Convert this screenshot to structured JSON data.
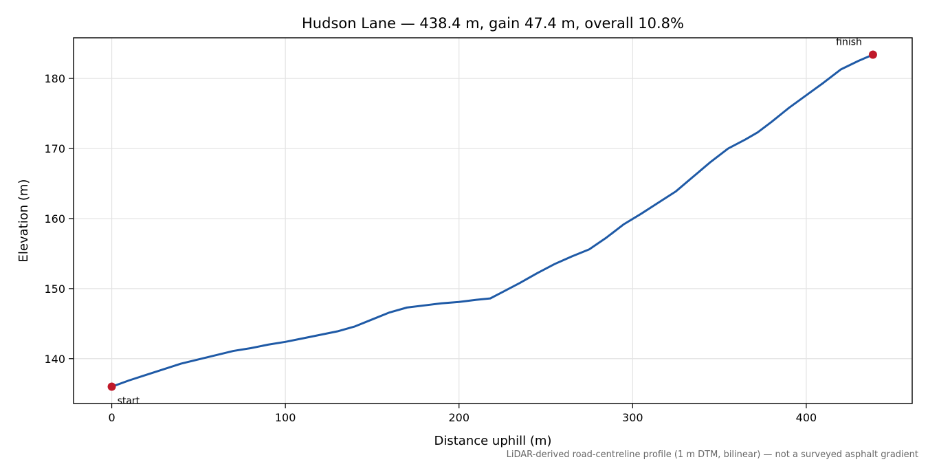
{
  "chart_data": {
    "type": "line",
    "title": "Hudson Lane — 438.4 m, gain 47.4 m, overall 10.8%",
    "xlabel": "Distance uphill (m)",
    "ylabel": "Elevation (m)",
    "xlim": [
      -22,
      461
    ],
    "ylim": [
      133.6,
      185.8
    ],
    "x_ticks": [
      0,
      100,
      200,
      300,
      400
    ],
    "y_ticks": [
      140,
      150,
      160,
      170,
      180
    ],
    "grid": true,
    "line_color": "#1f5aa6",
    "marker_color": "#c0192a",
    "series": [
      {
        "x": [
          0,
          10,
          20,
          30,
          40,
          50,
          60,
          70,
          80,
          90,
          100,
          110,
          120,
          130,
          140,
          150,
          160,
          170,
          180,
          190,
          200,
          210,
          218,
          225,
          235,
          245,
          255,
          265,
          275,
          285,
          295,
          305,
          315,
          325,
          335,
          345,
          355,
          365,
          372,
          380,
          390,
          400,
          410,
          420,
          430,
          438.4
        ],
        "y": [
          136.0,
          136.9,
          137.7,
          138.5,
          139.3,
          139.9,
          140.5,
          141.1,
          141.5,
          142.0,
          142.4,
          142.9,
          143.4,
          143.9,
          144.6,
          145.6,
          146.6,
          147.3,
          147.6,
          147.9,
          148.1,
          148.4,
          148.6,
          149.5,
          150.8,
          152.2,
          153.5,
          154.6,
          155.6,
          157.3,
          159.2,
          160.7,
          162.3,
          163.9,
          166.0,
          168.1,
          170.0,
          171.3,
          172.3,
          173.8,
          175.8,
          177.6,
          179.4,
          181.3,
          182.5,
          183.4
        ]
      }
    ],
    "annotations": [
      {
        "label": "start",
        "x": 0,
        "y": 136.0
      },
      {
        "label": "finish",
        "x": 438.4,
        "y": 183.4
      }
    ],
    "footnote": "LiDAR-derived road-centreline profile (1 m DTM, bilinear) — not a surveyed asphalt gradient"
  }
}
